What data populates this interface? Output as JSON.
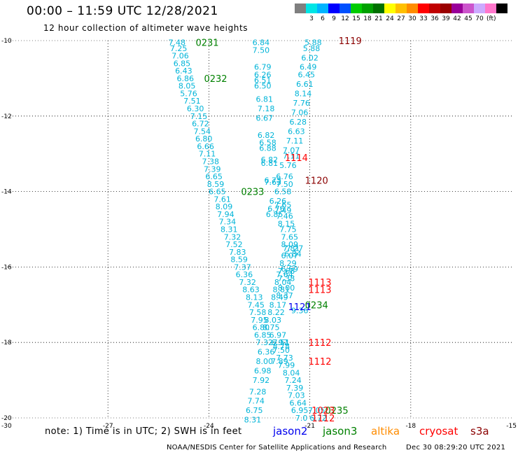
{
  "header": {
    "title": "00:00 – 11:59 UTC 12/28/2021",
    "subtitle": "12 hour collection of altimeter wave heights"
  },
  "legend": {
    "colors": [
      "#7f7f7f",
      "#00e5e5",
      "#00b4ff",
      "#0000ff",
      "#0050ff",
      "#00cc00",
      "#00a000",
      "#007000",
      "#ffff00",
      "#ffc000",
      "#ff8c00",
      "#ff0000",
      "#c00000",
      "#9a0000",
      "#990099",
      "#cc55cc",
      "#ccaaff",
      "#ff77cc",
      "#000000"
    ],
    "ticks": [
      "3",
      "6",
      "9",
      "12",
      "15",
      "18",
      "21",
      "24",
      "27",
      "30",
      "33",
      "36",
      "39",
      "42",
      "45",
      "70"
    ],
    "unit": "(ft)"
  },
  "footer": {
    "note": "note: 1) Time is in UTC; 2) SWH is in feet",
    "satellites": [
      {
        "name": "jason2",
        "color": "#0000ee"
      },
      {
        "name": "jason3",
        "color": "#008000"
      },
      {
        "name": "altika",
        "color": "#ff8c00"
      },
      {
        "name": "cryosat",
        "color": "#ff0000"
      },
      {
        "name": "s3a",
        "color": "#8b0000"
      }
    ],
    "credit": "NOAA/NESDIS Center for Satellite Applications and Research",
    "generated": "Dec 30 08:29:20 UTC 2021"
  },
  "chart_data": {
    "type": "scatter",
    "xlim": [
      -30,
      -15
    ],
    "ylim": [
      -20,
      -10
    ],
    "xticks": [
      "-30",
      "-27",
      "-24",
      "-21",
      "-18",
      "-15"
    ],
    "yticks": [
      "-10",
      "-12",
      "-14",
      "-16",
      "-18",
      "-20"
    ],
    "grid": true,
    "colors": {
      "swh": "#00b4d8",
      "jason3": "#008000",
      "cryosat": "#ff0000",
      "s3a": "#8b0000",
      "jason2": "#0000ee"
    },
    "passes": [
      {
        "name": "0231",
        "color": "#008000",
        "x": -24.05,
        "y": -10.05
      },
      {
        "name": "0232",
        "color": "#008000",
        "x": -23.8,
        "y": -11.0
      },
      {
        "name": "0233",
        "color": "#008000",
        "x": -22.7,
        "y": -14.0
      },
      {
        "name": "0234",
        "color": "#008000",
        "x": -20.8,
        "y": -17.0
      },
      {
        "name": "0235",
        "color": "#008000",
        "x": -20.2,
        "y": -19.8
      },
      {
        "name": "1119",
        "color": "#8b0000",
        "x": -19.8,
        "y": -10.0
      },
      {
        "name": "1120",
        "color": "#8b0000",
        "x": -20.8,
        "y": -13.7
      },
      {
        "name": "1114",
        "color": "#ff0000",
        "x": -21.4,
        "y": -13.1
      },
      {
        "name": "1113",
        "color": "#ff0000",
        "x": -20.7,
        "y": -16.4
      },
      {
        "name": "1113",
        "color": "#ff0000",
        "x": -20.7,
        "y": -16.6
      },
      {
        "name": "1112",
        "color": "#ff0000",
        "x": -20.7,
        "y": -18.0
      },
      {
        "name": "1112",
        "color": "#ff0000",
        "x": -20.7,
        "y": -18.5
      },
      {
        "name": "1112",
        "color": "#ff0000",
        "x": -20.6,
        "y": -20.0
      },
      {
        "name": "1023",
        "color": "#ff0000",
        "x": -20.6,
        "y": -19.8
      },
      {
        "name": "1121",
        "color": "#0000ee",
        "x": -21.3,
        "y": -17.05
      }
    ],
    "series": [
      {
        "name": "jason3",
        "points": [
          [
            -24.95,
            -10.05,
            "7.48"
          ],
          [
            -24.9,
            -10.2,
            "7.25"
          ],
          [
            -24.85,
            -10.4,
            "7.06"
          ],
          [
            -24.8,
            -10.6,
            "6.85"
          ],
          [
            -24.75,
            -10.8,
            "6.43"
          ],
          [
            -24.7,
            -11.0,
            "6.86"
          ],
          [
            -24.65,
            -11.2,
            "8.05"
          ],
          [
            -24.6,
            -11.4,
            "5.76"
          ],
          [
            -24.5,
            -11.6,
            "7.51"
          ],
          [
            -24.4,
            -11.8,
            "6.30"
          ],
          [
            -24.3,
            -12.0,
            "7.15"
          ],
          [
            -24.25,
            -12.2,
            "6.72"
          ],
          [
            -24.2,
            -12.4,
            "7.54"
          ],
          [
            -24.15,
            -12.6,
            "6.80"
          ],
          [
            -24.1,
            -12.8,
            "6.66"
          ],
          [
            -24.05,
            -13.0,
            "7.11"
          ],
          [
            -23.95,
            -13.2,
            "7.38"
          ],
          [
            -23.9,
            -13.4,
            "7.39"
          ],
          [
            -23.85,
            -13.6,
            "6.65"
          ],
          [
            -23.8,
            -13.8,
            "8.59"
          ],
          [
            -23.75,
            -14.0,
            "6.65"
          ],
          [
            -23.6,
            -14.2,
            "7.61"
          ],
          [
            -23.55,
            -14.4,
            "8.09"
          ],
          [
            -23.5,
            -14.6,
            "7.94"
          ],
          [
            -23.45,
            -14.8,
            "7.34"
          ],
          [
            -23.4,
            -15.0,
            "8.31"
          ],
          [
            -23.3,
            -15.2,
            "7.32"
          ],
          [
            -23.25,
            -15.4,
            "7.52"
          ],
          [
            -23.15,
            -15.6,
            "7.83"
          ],
          [
            -23.1,
            -15.8,
            "8.59"
          ],
          [
            -23.0,
            -16.0,
            "7.37"
          ],
          [
            -22.95,
            -16.2,
            "6.36"
          ],
          [
            -22.85,
            -16.4,
            "7.32"
          ],
          [
            -22.75,
            -16.6,
            "8.63"
          ],
          [
            -22.65,
            -16.8,
            "8.13"
          ],
          [
            -22.6,
            -17.0,
            "7.45"
          ],
          [
            -22.55,
            -17.2,
            "7.58"
          ],
          [
            -22.5,
            -17.4,
            "7.95"
          ],
          [
            -22.45,
            -17.6,
            "6.80"
          ],
          [
            -22.4,
            -17.8,
            "6.85"
          ],
          [
            -22.35,
            -18.0,
            "7.32"
          ],
          [
            -22.3,
            -18.25,
            "6.36"
          ],
          [
            -22.35,
            -18.5,
            "8.00"
          ],
          [
            -22.4,
            -18.75,
            "6.98"
          ],
          [
            -22.45,
            -19.0,
            "7.92"
          ],
          [
            -22.55,
            -19.3,
            "7.28"
          ],
          [
            -22.6,
            -19.55,
            "7.74"
          ],
          [
            -22.65,
            -19.8,
            "6.75"
          ],
          [
            -22.7,
            -20.05,
            "8.31"
          ]
        ]
      },
      {
        "name": "cryosat",
        "points": [
          [
            -22.45,
            -10.05,
            "6.84"
          ],
          [
            -22.45,
            -10.25,
            "7.50"
          ],
          [
            -22.4,
            -10.7,
            "6.79"
          ],
          [
            -22.4,
            -10.9,
            "6.26"
          ],
          [
            -22.4,
            -11.05,
            "6.51"
          ],
          [
            -22.4,
            -11.2,
            "6.50"
          ],
          [
            -22.35,
            -11.55,
            "6.81"
          ],
          [
            -22.3,
            -11.8,
            "7.18"
          ],
          [
            -22.35,
            -12.05,
            "6.67"
          ],
          [
            -22.3,
            -12.5,
            "6.82"
          ],
          [
            -22.25,
            -12.7,
            "6.58"
          ],
          [
            -22.25,
            -12.85,
            "6.88"
          ],
          [
            -22.2,
            -13.15,
            "6.82"
          ],
          [
            -22.2,
            -13.25,
            "6.81"
          ],
          [
            -22.1,
            -13.7,
            "6.73"
          ],
          [
            -22.1,
            -13.75,
            "7.63"
          ],
          [
            -21.8,
            -14.35,
            "7.65"
          ],
          [
            -21.8,
            -14.5,
            "7.49"
          ],
          [
            -21.75,
            -14.65,
            "7.46"
          ],
          [
            -21.7,
            -14.85,
            "8.15"
          ],
          [
            -21.65,
            -15.0,
            "7.75"
          ],
          [
            -21.6,
            -15.2,
            "7.65"
          ],
          [
            -21.6,
            -15.4,
            "8.09"
          ],
          [
            -21.55,
            -15.5,
            "7.81"
          ],
          [
            -21.6,
            -15.7,
            "6.07"
          ],
          [
            -21.65,
            -15.9,
            "8.29"
          ],
          [
            -21.7,
            -16.1,
            "7.68"
          ],
          [
            -21.75,
            -16.2,
            "7.64"
          ],
          [
            -21.8,
            -16.4,
            "8.04"
          ],
          [
            -21.85,
            -16.6,
            "8.81"
          ],
          [
            -21.9,
            -16.8,
            "8.49"
          ],
          [
            -21.95,
            -17.0,
            "8.17"
          ],
          [
            -22.0,
            -17.2,
            "8.22"
          ],
          [
            -22.1,
            -17.4,
            "8.03"
          ],
          [
            -22.15,
            -17.6,
            "8.75"
          ],
          [
            -21.95,
            -17.8,
            "6.97"
          ],
          [
            -21.9,
            -18.0,
            "6.97"
          ],
          [
            -21.85,
            -18.2,
            "7.50"
          ],
          [
            -21.75,
            -18.4,
            "7.73"
          ],
          [
            -21.7,
            -18.6,
            "7.99"
          ],
          [
            -21.55,
            -18.8,
            "8.04"
          ],
          [
            -21.5,
            -19.0,
            "7.24"
          ],
          [
            -21.45,
            -19.2,
            "7.39"
          ],
          [
            -21.4,
            -19.4,
            "7.03"
          ],
          [
            -21.35,
            -19.6,
            "6.64"
          ],
          [
            -21.3,
            -19.8,
            "6.95"
          ],
          [
            -21.25,
            -20.0,
            "7.0"
          ]
        ]
      },
      {
        "name": "s3a",
        "points": [
          [
            -20.9,
            -10.05,
            "5.88"
          ],
          [
            -20.95,
            -10.2,
            "5.88"
          ],
          [
            -21.0,
            -10.45,
            "6.02"
          ],
          [
            -21.05,
            -10.7,
            "6.49"
          ],
          [
            -21.1,
            -10.9,
            "6.45"
          ],
          [
            -21.15,
            -11.15,
            "6.61"
          ],
          [
            -21.2,
            -11.4,
            "8.14"
          ],
          [
            -21.25,
            -11.65,
            "7.76"
          ],
          [
            -21.3,
            -11.9,
            "7.06"
          ],
          [
            -21.35,
            -12.15,
            "6.28"
          ],
          [
            -21.4,
            -12.4,
            "6.63"
          ],
          [
            -21.45,
            -12.65,
            "7.11"
          ],
          [
            -21.55,
            -12.9,
            "7.07"
          ],
          [
            -21.55,
            -13.05,
            "7.11"
          ],
          [
            -21.65,
            -13.3,
            "5.76"
          ],
          [
            -21.75,
            -13.6,
            "6.76"
          ],
          [
            -21.75,
            -13.8,
            "7.50"
          ],
          [
            -21.8,
            -14.0,
            "6.58"
          ],
          [
            -21.95,
            -14.25,
            "6.26"
          ],
          [
            -22.0,
            -14.45,
            "6.76"
          ],
          [
            -22.05,
            -14.6,
            "6.85"
          ],
          [
            -21.45,
            -15.5,
            "7.27"
          ],
          [
            -21.5,
            -15.65,
            "6.84"
          ],
          [
            -21.6,
            -16.05,
            "6.69"
          ],
          [
            -21.7,
            -16.3,
            "7.38"
          ],
          [
            -21.7,
            -16.55,
            "8.00"
          ],
          [
            -21.75,
            -16.75,
            "8.37"
          ],
          [
            -21.3,
            -17.15,
            "9.36"
          ],
          [
            -21.85,
            -18.0,
            "7.51"
          ],
          [
            -21.85,
            -18.1,
            "8.78"
          ],
          [
            -21.9,
            -18.5,
            "7.89"
          ],
          [
            -20.8,
            -19.8,
            "7.05"
          ],
          [
            -20.75,
            -20.0,
            "6.72"
          ]
        ]
      }
    ]
  }
}
